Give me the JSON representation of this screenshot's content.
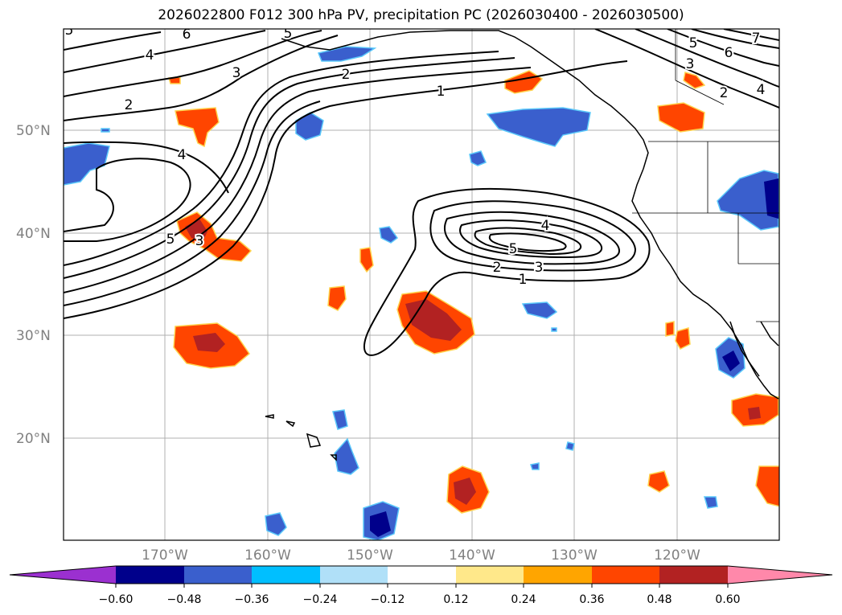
{
  "title": "2026022800 F012 300 hPa PV, precipitation PC (2026030400 - 2026030500)",
  "lat_labels": [
    "50°N",
    "40°N",
    "30°N",
    "20°N"
  ],
  "lon_labels": [
    "170°W",
    "160°W",
    "150°W",
    "140°W",
    "130°W",
    "120°W"
  ],
  "contour_labels": [
    "5",
    "6",
    "5",
    "7",
    "4",
    "3",
    "2",
    "1",
    "5",
    "6",
    "3",
    "2",
    "4",
    "2",
    "4",
    "5",
    "3",
    "4",
    "5",
    "2",
    "3",
    "1"
  ],
  "colorbar": {
    "ticks": [
      "−0.60",
      "−0.48",
      "−0.36",
      "−0.24",
      "−0.12",
      "0.12",
      "0.24",
      "0.36",
      "0.48",
      "0.60"
    ],
    "colors": [
      "#9b30d0",
      "#00008b",
      "#3a5fcd",
      "#00bfff",
      "#b0e0f8",
      "#ffffff",
      "#ffe88a",
      "#ffa500",
      "#ff4500",
      "#b22222",
      "#ff88aa"
    ]
  }
}
